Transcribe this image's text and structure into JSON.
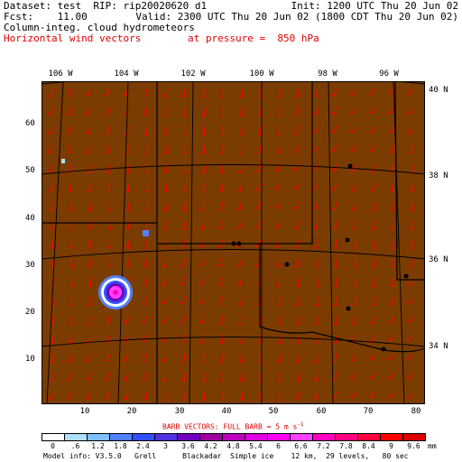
{
  "header": {
    "dataset": "Dataset: test",
    "rip": "RIP: rip20020620 d1",
    "init": "Init: 1200 UTC Thu 20 Jun 02",
    "fcst": "Fcst:    11.00",
    "valid": "Valid: 2300 UTC Thu 20 Jun 02 (1800 CDT Thu 20 Jun 02)",
    "field1": "Column-integ. cloud hydrometeors",
    "field2": "Horizontal wind vectors",
    "pressure": "at pressure =  850 hPa"
  },
  "axes": {
    "top": [
      "106 W",
      "104 W",
      "102 W",
      "100 W",
      "98 W",
      "96 W"
    ],
    "right": [
      "40 N",
      "38 N",
      "36 N",
      "34 N"
    ],
    "left": [
      "10",
      "20",
      "30",
      "40",
      "50",
      "60"
    ],
    "bottom": [
      "10",
      "20",
      "30",
      "40",
      "50",
      "60",
      "70",
      "80"
    ]
  },
  "barb_note": "BARB VECTORS:  FULL BARB = 5 m s",
  "barb_sup": "-1",
  "colorbar": {
    "labels": [
      "0",
      ".6",
      "1.2",
      "1.8",
      "2.4",
      "3",
      "3.6",
      "4.2",
      "4.8",
      "5.4",
      "6",
      "6.6",
      "7.2",
      "7.8",
      "8.4",
      "9",
      "9.6"
    ],
    "unit": "mm",
    "colors": [
      "#ffffff",
      "#b0e0ff",
      "#80c0ff",
      "#5080ff",
      "#3050ff",
      "#5030e0",
      "#7000c0",
      "#a000a0",
      "#c000c0",
      "#e000e0",
      "#ff00ff",
      "#ff40ff",
      "#ff00c0",
      "#ff0080",
      "#ff0040",
      "#ff0000",
      "#e00000"
    ]
  },
  "footer": "Model info: V3.5.0   Grell      Blackadar  Simple ice    12 km,  29 levels,   80 sec",
  "colors": {
    "land": "#7a3c00",
    "vector": "#ff0000",
    "border": "#000000"
  }
}
